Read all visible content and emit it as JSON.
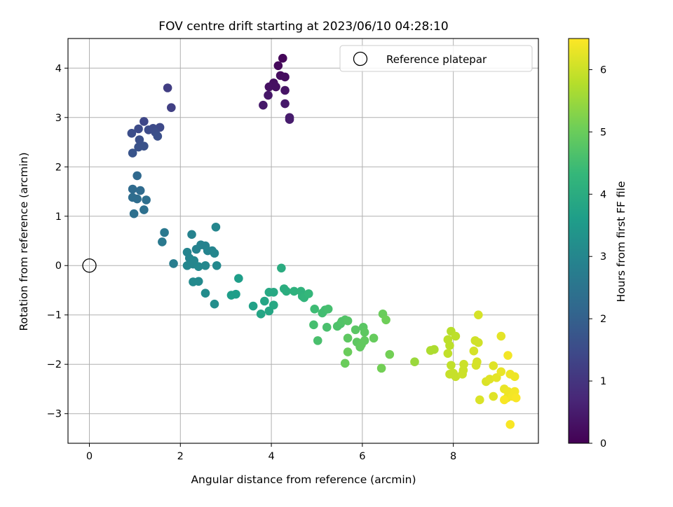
{
  "chart_data": {
    "type": "scatter",
    "title": "FOV centre drift starting at 2023/06/10 04:28:10",
    "xlabel": "Angular distance from reference (arcmin)",
    "ylabel": "Rotation from reference (arcmin)",
    "xlim": [
      -0.47,
      9.87
    ],
    "ylim": [
      -3.6,
      4.6
    ],
    "xticks": [
      0,
      2,
      4,
      6,
      8
    ],
    "yticks": [
      -3,
      -2,
      -1,
      0,
      1,
      2,
      3,
      4
    ],
    "xtick_labels": [
      "0",
      "2",
      "4",
      "6",
      "8"
    ],
    "ytick_labels": [
      "−3",
      "−2",
      "−1",
      "0",
      "1",
      "2",
      "3",
      "4"
    ],
    "grid": true,
    "legend": {
      "placement": "top-right",
      "entries": [
        "Reference platepar"
      ]
    },
    "reference_point": {
      "name": "Reference platepar",
      "x": 0,
      "y": 0
    },
    "colorbar": {
      "label": "Hours from first FF file",
      "colormap": "viridis",
      "range": [
        0,
        6.5
      ],
      "ticks": [
        0,
        1,
        2,
        3,
        4,
        5,
        6
      ],
      "tick_labels": [
        "0",
        "1",
        "2",
        "3",
        "4",
        "5",
        "6"
      ]
    },
    "colormap_stops": [
      "#440154",
      "#482878",
      "#3e4989",
      "#31688e",
      "#26828e",
      "#1f9e89",
      "#35b779",
      "#6ece58",
      "#b5de2b",
      "#fde725"
    ],
    "points": [
      [
        4.25,
        4.2,
        0.1
      ],
      [
        4.15,
        4.05,
        0.15
      ],
      [
        4.2,
        3.85,
        0.2
      ],
      [
        4.3,
        3.82,
        0.22
      ],
      [
        4.05,
        3.7,
        0.25
      ],
      [
        3.95,
        3.62,
        0.3
      ],
      [
        4.1,
        3.62,
        0.28
      ],
      [
        4.3,
        3.55,
        0.35
      ],
      [
        3.93,
        3.45,
        0.4
      ],
      [
        4.3,
        3.28,
        0.45
      ],
      [
        3.82,
        3.25,
        0.45
      ],
      [
        4.4,
        3.0,
        0.5
      ],
      [
        4.4,
        2.96,
        0.5
      ],
      [
        1.72,
        3.6,
        1.2
      ],
      [
        1.8,
        3.2,
        1.25
      ],
      [
        1.2,
        2.92,
        1.4
      ],
      [
        1.55,
        2.8,
        1.45
      ],
      [
        1.4,
        2.78,
        1.5
      ],
      [
        1.08,
        2.77,
        1.5
      ],
      [
        1.3,
        2.75,
        1.52
      ],
      [
        0.93,
        2.68,
        1.55
      ],
      [
        1.45,
        2.7,
        1.55
      ],
      [
        1.5,
        2.62,
        1.6
      ],
      [
        1.1,
        2.55,
        1.6
      ],
      [
        1.2,
        2.42,
        1.65
      ],
      [
        1.08,
        2.4,
        1.65
      ],
      [
        0.95,
        2.28,
        1.7
      ],
      [
        1.05,
        1.82,
        2.2
      ],
      [
        0.95,
        1.55,
        2.25
      ],
      [
        1.12,
        1.52,
        2.25
      ],
      [
        0.95,
        1.38,
        2.3
      ],
      [
        1.05,
        1.35,
        2.3
      ],
      [
        1.25,
        1.33,
        2.35
      ],
      [
        1.2,
        1.13,
        2.4
      ],
      [
        0.98,
        1.05,
        2.4
      ],
      [
        1.65,
        0.67,
        2.6
      ],
      [
        1.6,
        0.48,
        2.65
      ],
      [
        1.85,
        0.04,
        2.75
      ],
      [
        2.25,
        0.63,
        2.9
      ],
      [
        2.78,
        0.78,
        3.0
      ],
      [
        2.45,
        0.42,
        2.9
      ],
      [
        2.55,
        0.4,
        2.9
      ],
      [
        2.35,
        0.33,
        2.9
      ],
      [
        2.6,
        0.3,
        2.95
      ],
      [
        2.7,
        0.3,
        2.95
      ],
      [
        2.75,
        0.25,
        3.0
      ],
      [
        2.15,
        0.27,
        2.95
      ],
      [
        2.2,
        0.15,
        2.95
      ],
      [
        2.3,
        0.1,
        3.0
      ],
      [
        2.15,
        0.0,
        3.0
      ],
      [
        2.28,
        0.03,
        3.0
      ],
      [
        2.4,
        -0.02,
        3.05
      ],
      [
        2.55,
        0.0,
        3.05
      ],
      [
        2.8,
        0.0,
        3.05
      ],
      [
        2.28,
        -0.33,
        3.1
      ],
      [
        2.4,
        -0.32,
        3.1
      ],
      [
        2.55,
        -0.56,
        3.15
      ],
      [
        2.75,
        -0.78,
        3.2
      ],
      [
        3.28,
        -0.26,
        3.6
      ],
      [
        3.12,
        -0.6,
        3.6
      ],
      [
        3.22,
        -0.58,
        3.6
      ],
      [
        3.6,
        -0.82,
        3.7
      ],
      [
        3.77,
        -0.98,
        3.8
      ],
      [
        3.85,
        -0.72,
        3.8
      ],
      [
        3.95,
        -0.92,
        3.85
      ],
      [
        4.05,
        -0.8,
        3.9
      ],
      [
        3.95,
        -0.54,
        3.9
      ],
      [
        4.05,
        -0.54,
        3.9
      ],
      [
        4.22,
        -0.05,
        4.0
      ],
      [
        4.28,
        -0.47,
        4.05
      ],
      [
        4.33,
        -0.52,
        4.05
      ],
      [
        4.5,
        -0.52,
        4.15
      ],
      [
        4.65,
        -0.52,
        4.2
      ],
      [
        4.68,
        -0.62,
        4.2
      ],
      [
        4.72,
        -0.65,
        4.25
      ],
      [
        4.82,
        -0.57,
        4.3
      ],
      [
        4.95,
        -0.88,
        4.45
      ],
      [
        5.12,
        -0.96,
        4.5
      ],
      [
        5.18,
        -0.9,
        4.5
      ],
      [
        5.25,
        -0.88,
        4.55
      ],
      [
        4.93,
        -1.2,
        4.55
      ],
      [
        5.22,
        -1.25,
        4.6
      ],
      [
        5.02,
        -1.52,
        4.6
      ],
      [
        5.45,
        -1.23,
        4.65
      ],
      [
        5.52,
        -1.18,
        4.65
      ],
      [
        5.55,
        -1.13,
        4.7
      ],
      [
        5.62,
        -1.1,
        4.7
      ],
      [
        5.68,
        -1.12,
        4.75
      ],
      [
        5.85,
        -1.3,
        4.8
      ],
      [
        6.02,
        -1.25,
        4.8
      ],
      [
        6.05,
        -1.35,
        4.85
      ],
      [
        5.68,
        -1.47,
        4.85
      ],
      [
        5.88,
        -1.55,
        4.85
      ],
      [
        5.98,
        -1.6,
        4.9
      ],
      [
        5.95,
        -1.65,
        4.9
      ],
      [
        6.05,
        -1.52,
        4.9
      ],
      [
        6.25,
        -1.47,
        4.95
      ],
      [
        5.68,
        -1.75,
        5.0
      ],
      [
        5.62,
        -1.98,
        5.0
      ],
      [
        6.45,
        -0.98,
        5.0
      ],
      [
        6.52,
        -1.1,
        5.05
      ],
      [
        6.6,
        -1.8,
        5.1
      ],
      [
        6.42,
        -2.08,
        5.1
      ],
      [
        7.15,
        -1.95,
        5.5
      ],
      [
        7.5,
        -1.72,
        5.7
      ],
      [
        7.58,
        -1.7,
        5.7
      ],
      [
        7.95,
        -1.33,
        5.8
      ],
      [
        8.05,
        -1.43,
        5.85
      ],
      [
        7.88,
        -1.5,
        5.85
      ],
      [
        7.92,
        -1.62,
        5.85
      ],
      [
        7.88,
        -1.78,
        5.9
      ],
      [
        7.95,
        -2.02,
        5.9
      ],
      [
        8.0,
        -2.18,
        5.95
      ],
      [
        7.92,
        -2.2,
        5.95
      ],
      [
        8.05,
        -2.25,
        5.95
      ],
      [
        8.23,
        -2.0,
        6.0
      ],
      [
        8.22,
        -2.12,
        6.0
      ],
      [
        8.2,
        -2.2,
        6.0
      ],
      [
        8.48,
        -1.52,
        6.05
      ],
      [
        8.55,
        -1.56,
        6.05
      ],
      [
        8.45,
        -1.73,
        6.1
      ],
      [
        8.52,
        -1.95,
        6.1
      ],
      [
        8.5,
        -2.02,
        6.1
      ],
      [
        8.55,
        -1.0,
        6.1
      ],
      [
        8.72,
        -2.35,
        6.15
      ],
      [
        8.8,
        -2.3,
        6.2
      ],
      [
        8.88,
        -2.03,
        6.2
      ],
      [
        8.95,
        -2.27,
        6.25
      ],
      [
        9.05,
        -1.43,
        6.25
      ],
      [
        9.05,
        -2.15,
        6.3
      ],
      [
        9.12,
        -2.5,
        6.3
      ],
      [
        9.18,
        -2.68,
        6.3
      ],
      [
        9.2,
        -2.55,
        6.35
      ],
      [
        9.25,
        -2.2,
        6.35
      ],
      [
        9.35,
        -2.25,
        6.35
      ],
      [
        9.35,
        -2.55,
        6.4
      ],
      [
        9.3,
        -2.65,
        6.4
      ],
      [
        9.38,
        -2.68,
        6.45
      ],
      [
        9.12,
        -2.72,
        6.45
      ],
      [
        9.2,
        -1.82,
        6.4
      ],
      [
        9.25,
        -3.22,
        6.45
      ],
      [
        8.58,
        -2.72,
        6.15
      ],
      [
        8.88,
        -2.65,
        6.2
      ]
    ]
  }
}
